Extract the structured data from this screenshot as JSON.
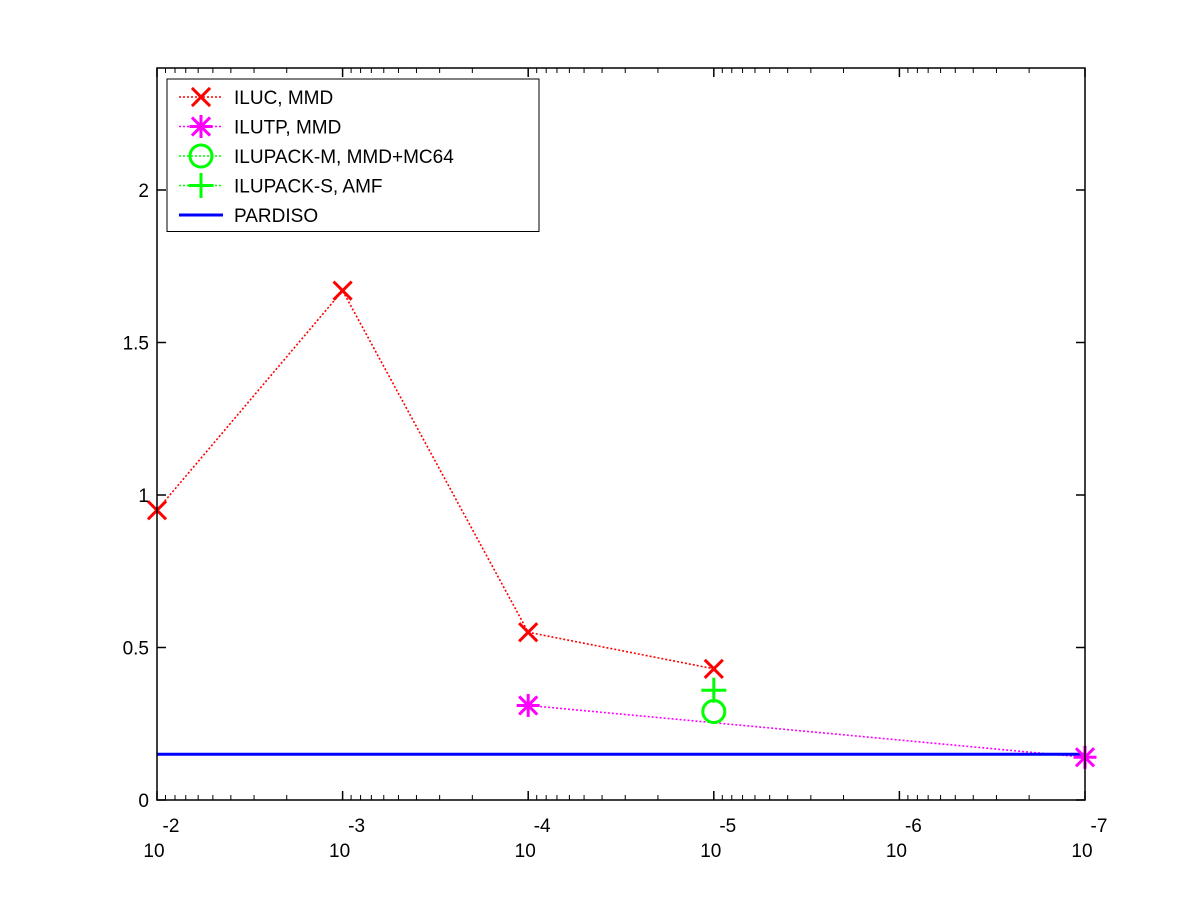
{
  "chart_data": {
    "type": "line",
    "title": "",
    "xlabel": "",
    "ylabel": "",
    "x_scale": "log",
    "x_direction": "decreasing",
    "xlim": [
      0.01,
      1e-07
    ],
    "ylim": [
      0,
      2.4
    ],
    "x_ticks": [
      {
        "value": 0.01,
        "base": "10",
        "exp": "-2"
      },
      {
        "value": 0.001,
        "base": "10",
        "exp": "-3"
      },
      {
        "value": 0.0001,
        "base": "10",
        "exp": "-4"
      },
      {
        "value": 1e-05,
        "base": "10",
        "exp": "-5"
      },
      {
        "value": 1e-06,
        "base": "10",
        "exp": "-6"
      },
      {
        "value": 1e-07,
        "base": "10",
        "exp": "-7"
      }
    ],
    "y_ticks": [
      {
        "value": 0,
        "label": "0"
      },
      {
        "value": 0.5,
        "label": "0.5"
      },
      {
        "value": 1,
        "label": "1"
      },
      {
        "value": 1.5,
        "label": "1.5"
      },
      {
        "value": 2,
        "label": "2"
      }
    ],
    "grid": false,
    "legend_position": "top-left",
    "series": [
      {
        "name": "ILUC, MMD",
        "color": "#ff0000",
        "marker": "x",
        "linestyle": "dotted",
        "x": [
          0.01,
          0.001,
          0.0001,
          1e-05
        ],
        "y": [
          0.95,
          1.67,
          0.55,
          0.43
        ]
      },
      {
        "name": "ILUTP, MMD",
        "color": "#ff00ff",
        "marker": "asterisk",
        "linestyle": "dotted",
        "x": [
          0.0001,
          1e-07
        ],
        "y": [
          0.31,
          0.14
        ]
      },
      {
        "name": "ILUPACK-M, MMD+MC64",
        "color": "#00ff00",
        "marker": "circle",
        "linestyle": "dotted",
        "x": [
          1e-05
        ],
        "y": [
          0.29
        ]
      },
      {
        "name": "ILUPACK-S, AMF",
        "color": "#00ff00",
        "marker": "plus",
        "linestyle": "dotted",
        "x": [
          1e-05
        ],
        "y": [
          0.36
        ]
      },
      {
        "name": "PARDISO",
        "color": "#0000ff",
        "marker": "none",
        "linestyle": "solid",
        "x": [
          0.01,
          1e-07
        ],
        "y": [
          0.15,
          0.15
        ]
      }
    ]
  }
}
